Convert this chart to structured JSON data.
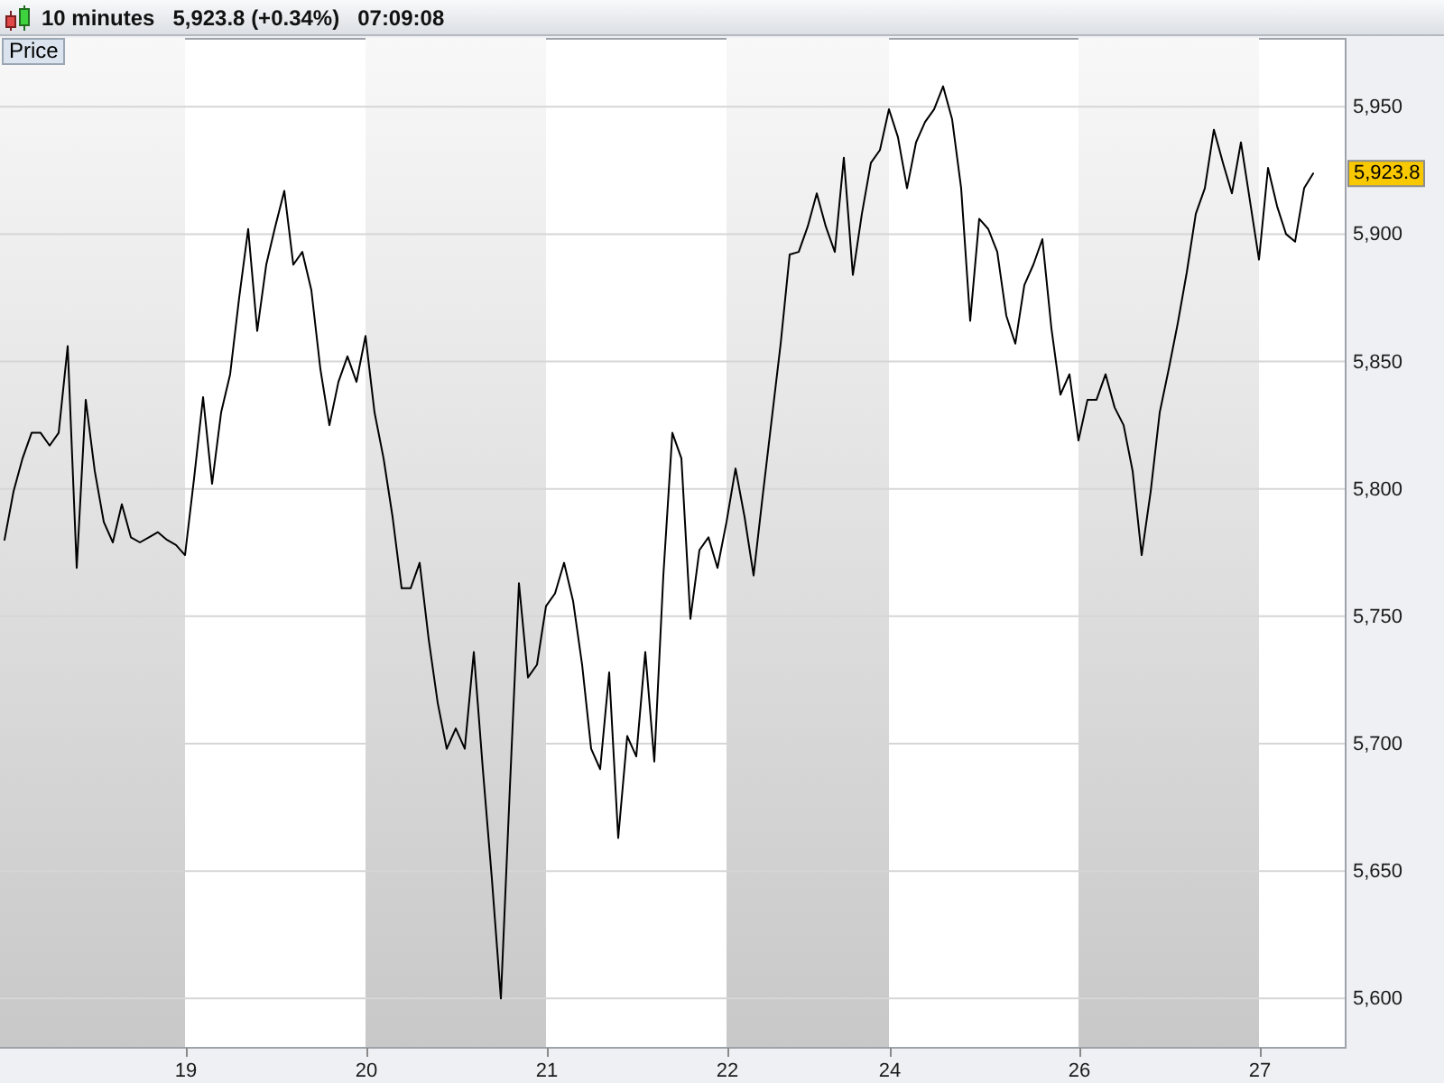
{
  "chart_data": {
    "type": "line",
    "title": "10 minutes   5,923.8 (+0.34%)   07:09:08",
    "ylabel": "Price",
    "annotations": [
      {
        "text": "5,923.8",
        "y": 5923.8
      }
    ],
    "categories": [
      null,
      null,
      null,
      null,
      null,
      null,
      null,
      null,
      null,
      null,
      null,
      null,
      null,
      null,
      null,
      null,
      null,
      null,
      null,
      null,
      "19",
      null,
      null,
      null,
      null,
      null,
      null,
      null,
      null,
      null,
      null,
      null,
      null,
      null,
      null,
      null,
      null,
      null,
      null,
      null,
      "20",
      null,
      null,
      null,
      null,
      null,
      null,
      null,
      null,
      null,
      null,
      null,
      null,
      null,
      null,
      null,
      null,
      null,
      null,
      null,
      "21",
      null,
      null,
      null,
      null,
      null,
      null,
      null,
      null,
      null,
      null,
      null,
      null,
      null,
      null,
      null,
      null,
      null,
      null,
      null,
      "22",
      null,
      null,
      null,
      null,
      null,
      null,
      null,
      null,
      null,
      null,
      null,
      null,
      null,
      null,
      null,
      null,
      null,
      "24",
      null,
      null,
      null,
      null,
      null,
      null,
      null,
      null,
      null,
      null,
      null,
      null,
      null,
      null,
      null,
      null,
      null,
      null,
      null,
      null,
      "26",
      null,
      null,
      null,
      null,
      null,
      null,
      null,
      null,
      null,
      null,
      null,
      null,
      null,
      null,
      null,
      null,
      null,
      null,
      null,
      "27",
      null,
      null,
      null,
      null,
      null,
      null,
      null,
      null,
      null
    ],
    "series": [
      {
        "color": "#000000",
        "values": [
          5780,
          5799,
          5812,
          5822,
          5822,
          5817,
          5822,
          5856,
          5769,
          5835,
          5807,
          5787,
          5779,
          5794,
          5781,
          5779,
          5781,
          5783,
          5780,
          5778,
          5774,
          5804,
          5836,
          5802,
          5830,
          5845,
          5875,
          5902,
          5862,
          5888,
          5903,
          5917,
          5888,
          5893,
          5878,
          5847,
          5825,
          5842,
          5852,
          5842,
          5860,
          5830,
          5812,
          5789,
          5761,
          5761,
          5771,
          5741,
          5716,
          5698,
          5706,
          5698,
          5736,
          5690,
          5647,
          5600,
          5683,
          5763,
          5726,
          5731,
          5754,
          5759,
          5771,
          5756,
          5731,
          5698,
          5690,
          5728,
          5663,
          5703,
          5695,
          5736,
          5693,
          5766,
          5822,
          5812,
          5749,
          5776,
          5781,
          5769,
          5787,
          5808,
          5789,
          5766,
          5797,
          5827,
          5857,
          5892,
          5893,
          5903,
          5916,
          5903,
          5893,
          5930,
          5884,
          5908,
          5928,
          5933,
          5949,
          5938,
          5918,
          5936,
          5944,
          5949,
          5958,
          5945,
          5918,
          5866,
          5906,
          5902,
          5893,
          5868,
          5857,
          5880,
          5888,
          5898,
          5863,
          5837,
          5845,
          5819,
          5835,
          5835,
          5845,
          5832,
          5825,
          5807,
          5774,
          5799,
          5830,
          5847,
          5865,
          5885,
          5908,
          5918,
          5941,
          5928,
          5916,
          5936,
          5913,
          5890,
          5926,
          5911,
          5900,
          5897,
          5918,
          5923.8,
          null,
          null,
          null
        ]
      }
    ],
    "ylim": [
      5581,
      5977
    ],
    "yticks": [
      {
        "value": 5600,
        "label": "5,600"
      },
      {
        "value": 5650,
        "label": "5,650"
      },
      {
        "value": 5700,
        "label": "5,700"
      },
      {
        "value": 5750,
        "label": "5,750"
      },
      {
        "value": 5800,
        "label": "5,800"
      },
      {
        "value": 5850,
        "label": "5,850"
      },
      {
        "value": 5900,
        "label": "5,900"
      },
      {
        "value": 5950,
        "label": "5,950"
      }
    ],
    "grid": "y",
    "bands": [
      {
        "axis": "x",
        "from": "20",
        "to": "21",
        "color": "#c8c8c8"
      },
      {
        "axis": "x",
        "from": "22",
        "to": "24",
        "color": "#c8c8c8"
      },
      {
        "axis": "x",
        "from": "26",
        "to": "27",
        "color": "#c8c8c8"
      }
    ]
  }
}
